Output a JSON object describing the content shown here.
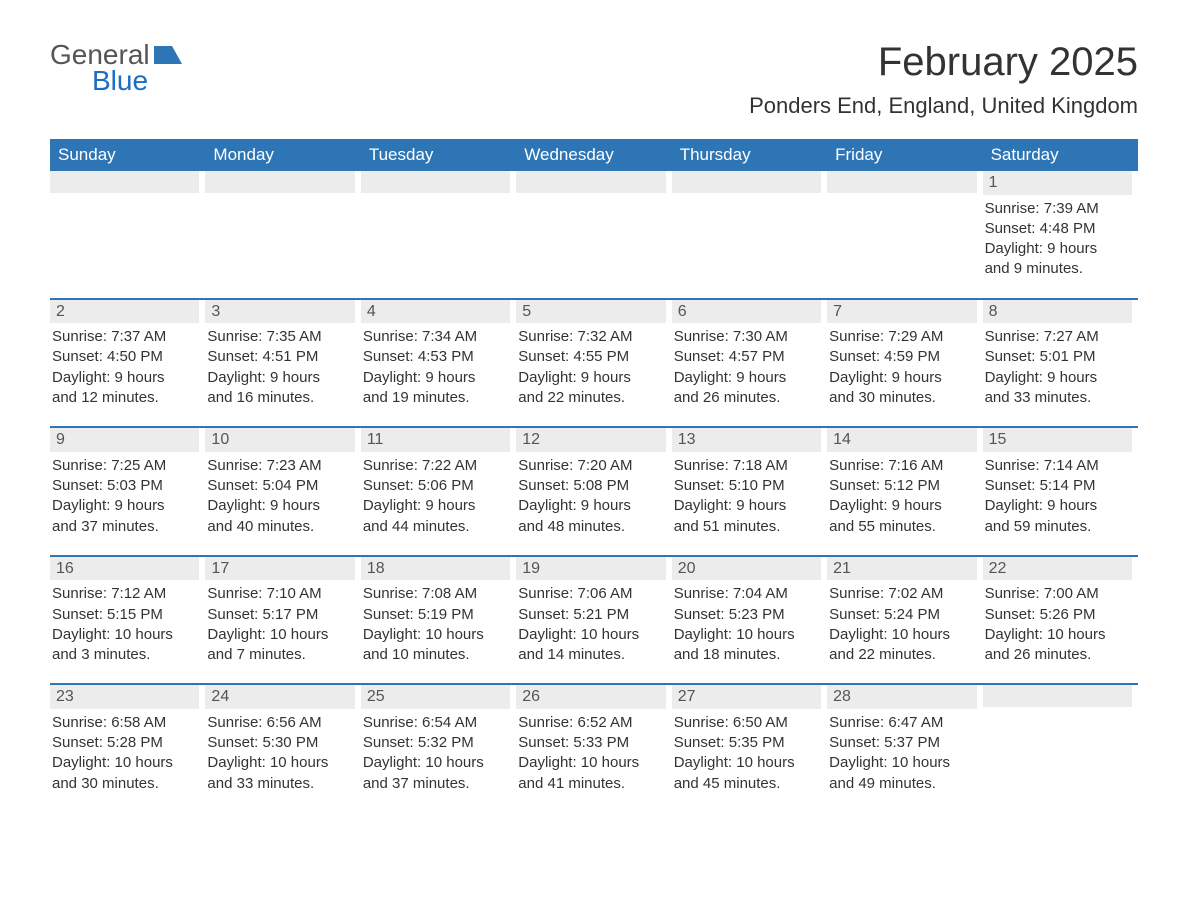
{
  "logo": {
    "general": "General",
    "blue": "Blue",
    "icon_color": "#2e75b6"
  },
  "title": "February 2025",
  "location": "Ponders End, England, United Kingdom",
  "colors": {
    "header_bg": "#2e75b6",
    "header_text": "#ffffff",
    "daynum_bg": "#ececec",
    "text": "#333333"
  },
  "dow": [
    "Sunday",
    "Monday",
    "Tuesday",
    "Wednesday",
    "Thursday",
    "Friday",
    "Saturday"
  ],
  "weeks": [
    [
      {
        "day": "",
        "sunrise": "",
        "sunset": "",
        "daylight1": "",
        "daylight2": ""
      },
      {
        "day": "",
        "sunrise": "",
        "sunset": "",
        "daylight1": "",
        "daylight2": ""
      },
      {
        "day": "",
        "sunrise": "",
        "sunset": "",
        "daylight1": "",
        "daylight2": ""
      },
      {
        "day": "",
        "sunrise": "",
        "sunset": "",
        "daylight1": "",
        "daylight2": ""
      },
      {
        "day": "",
        "sunrise": "",
        "sunset": "",
        "daylight1": "",
        "daylight2": ""
      },
      {
        "day": "",
        "sunrise": "",
        "sunset": "",
        "daylight1": "",
        "daylight2": ""
      },
      {
        "day": "1",
        "sunrise": "Sunrise: 7:39 AM",
        "sunset": "Sunset: 4:48 PM",
        "daylight1": "Daylight: 9 hours",
        "daylight2": "and 9 minutes."
      }
    ],
    [
      {
        "day": "2",
        "sunrise": "Sunrise: 7:37 AM",
        "sunset": "Sunset: 4:50 PM",
        "daylight1": "Daylight: 9 hours",
        "daylight2": "and 12 minutes."
      },
      {
        "day": "3",
        "sunrise": "Sunrise: 7:35 AM",
        "sunset": "Sunset: 4:51 PM",
        "daylight1": "Daylight: 9 hours",
        "daylight2": "and 16 minutes."
      },
      {
        "day": "4",
        "sunrise": "Sunrise: 7:34 AM",
        "sunset": "Sunset: 4:53 PM",
        "daylight1": "Daylight: 9 hours",
        "daylight2": "and 19 minutes."
      },
      {
        "day": "5",
        "sunrise": "Sunrise: 7:32 AM",
        "sunset": "Sunset: 4:55 PM",
        "daylight1": "Daylight: 9 hours",
        "daylight2": "and 22 minutes."
      },
      {
        "day": "6",
        "sunrise": "Sunrise: 7:30 AM",
        "sunset": "Sunset: 4:57 PM",
        "daylight1": "Daylight: 9 hours",
        "daylight2": "and 26 minutes."
      },
      {
        "day": "7",
        "sunrise": "Sunrise: 7:29 AM",
        "sunset": "Sunset: 4:59 PM",
        "daylight1": "Daylight: 9 hours",
        "daylight2": "and 30 minutes."
      },
      {
        "day": "8",
        "sunrise": "Sunrise: 7:27 AM",
        "sunset": "Sunset: 5:01 PM",
        "daylight1": "Daylight: 9 hours",
        "daylight2": "and 33 minutes."
      }
    ],
    [
      {
        "day": "9",
        "sunrise": "Sunrise: 7:25 AM",
        "sunset": "Sunset: 5:03 PM",
        "daylight1": "Daylight: 9 hours",
        "daylight2": "and 37 minutes."
      },
      {
        "day": "10",
        "sunrise": "Sunrise: 7:23 AM",
        "sunset": "Sunset: 5:04 PM",
        "daylight1": "Daylight: 9 hours",
        "daylight2": "and 40 minutes."
      },
      {
        "day": "11",
        "sunrise": "Sunrise: 7:22 AM",
        "sunset": "Sunset: 5:06 PM",
        "daylight1": "Daylight: 9 hours",
        "daylight2": "and 44 minutes."
      },
      {
        "day": "12",
        "sunrise": "Sunrise: 7:20 AM",
        "sunset": "Sunset: 5:08 PM",
        "daylight1": "Daylight: 9 hours",
        "daylight2": "and 48 minutes."
      },
      {
        "day": "13",
        "sunrise": "Sunrise: 7:18 AM",
        "sunset": "Sunset: 5:10 PM",
        "daylight1": "Daylight: 9 hours",
        "daylight2": "and 51 minutes."
      },
      {
        "day": "14",
        "sunrise": "Sunrise: 7:16 AM",
        "sunset": "Sunset: 5:12 PM",
        "daylight1": "Daylight: 9 hours",
        "daylight2": "and 55 minutes."
      },
      {
        "day": "15",
        "sunrise": "Sunrise: 7:14 AM",
        "sunset": "Sunset: 5:14 PM",
        "daylight1": "Daylight: 9 hours",
        "daylight2": "and 59 minutes."
      }
    ],
    [
      {
        "day": "16",
        "sunrise": "Sunrise: 7:12 AM",
        "sunset": "Sunset: 5:15 PM",
        "daylight1": "Daylight: 10 hours",
        "daylight2": "and 3 minutes."
      },
      {
        "day": "17",
        "sunrise": "Sunrise: 7:10 AM",
        "sunset": "Sunset: 5:17 PM",
        "daylight1": "Daylight: 10 hours",
        "daylight2": "and 7 minutes."
      },
      {
        "day": "18",
        "sunrise": "Sunrise: 7:08 AM",
        "sunset": "Sunset: 5:19 PM",
        "daylight1": "Daylight: 10 hours",
        "daylight2": "and 10 minutes."
      },
      {
        "day": "19",
        "sunrise": "Sunrise: 7:06 AM",
        "sunset": "Sunset: 5:21 PM",
        "daylight1": "Daylight: 10 hours",
        "daylight2": "and 14 minutes."
      },
      {
        "day": "20",
        "sunrise": "Sunrise: 7:04 AM",
        "sunset": "Sunset: 5:23 PM",
        "daylight1": "Daylight: 10 hours",
        "daylight2": "and 18 minutes."
      },
      {
        "day": "21",
        "sunrise": "Sunrise: 7:02 AM",
        "sunset": "Sunset: 5:24 PM",
        "daylight1": "Daylight: 10 hours",
        "daylight2": "and 22 minutes."
      },
      {
        "day": "22",
        "sunrise": "Sunrise: 7:00 AM",
        "sunset": "Sunset: 5:26 PM",
        "daylight1": "Daylight: 10 hours",
        "daylight2": "and 26 minutes."
      }
    ],
    [
      {
        "day": "23",
        "sunrise": "Sunrise: 6:58 AM",
        "sunset": "Sunset: 5:28 PM",
        "daylight1": "Daylight: 10 hours",
        "daylight2": "and 30 minutes."
      },
      {
        "day": "24",
        "sunrise": "Sunrise: 6:56 AM",
        "sunset": "Sunset: 5:30 PM",
        "daylight1": "Daylight: 10 hours",
        "daylight2": "and 33 minutes."
      },
      {
        "day": "25",
        "sunrise": "Sunrise: 6:54 AM",
        "sunset": "Sunset: 5:32 PM",
        "daylight1": "Daylight: 10 hours",
        "daylight2": "and 37 minutes."
      },
      {
        "day": "26",
        "sunrise": "Sunrise: 6:52 AM",
        "sunset": "Sunset: 5:33 PM",
        "daylight1": "Daylight: 10 hours",
        "daylight2": "and 41 minutes."
      },
      {
        "day": "27",
        "sunrise": "Sunrise: 6:50 AM",
        "sunset": "Sunset: 5:35 PM",
        "daylight1": "Daylight: 10 hours",
        "daylight2": "and 45 minutes."
      },
      {
        "day": "28",
        "sunrise": "Sunrise: 6:47 AM",
        "sunset": "Sunset: 5:37 PM",
        "daylight1": "Daylight: 10 hours",
        "daylight2": "and 49 minutes."
      },
      {
        "day": "",
        "sunrise": "",
        "sunset": "",
        "daylight1": "",
        "daylight2": ""
      }
    ]
  ]
}
